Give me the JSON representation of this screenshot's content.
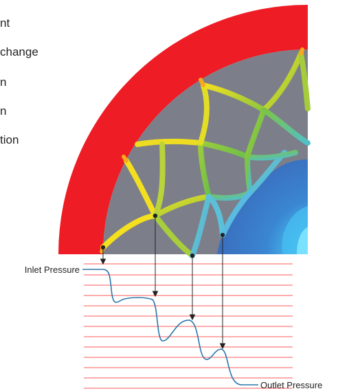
{
  "side_text": [
    "nt",
    "change",
    "n",
    "n",
    "tion"
  ],
  "labels": {
    "inlet": "Inlet Pressure",
    "outlet": "Outlet Pressure"
  },
  "colors": {
    "housing": "#ee1c24",
    "stator": "#7c7f8a",
    "rotor": "#3c78c5",
    "grid_line": "#ff5a5a",
    "pressure_curve": "#2a76a8",
    "arrow": "#222222"
  }
}
